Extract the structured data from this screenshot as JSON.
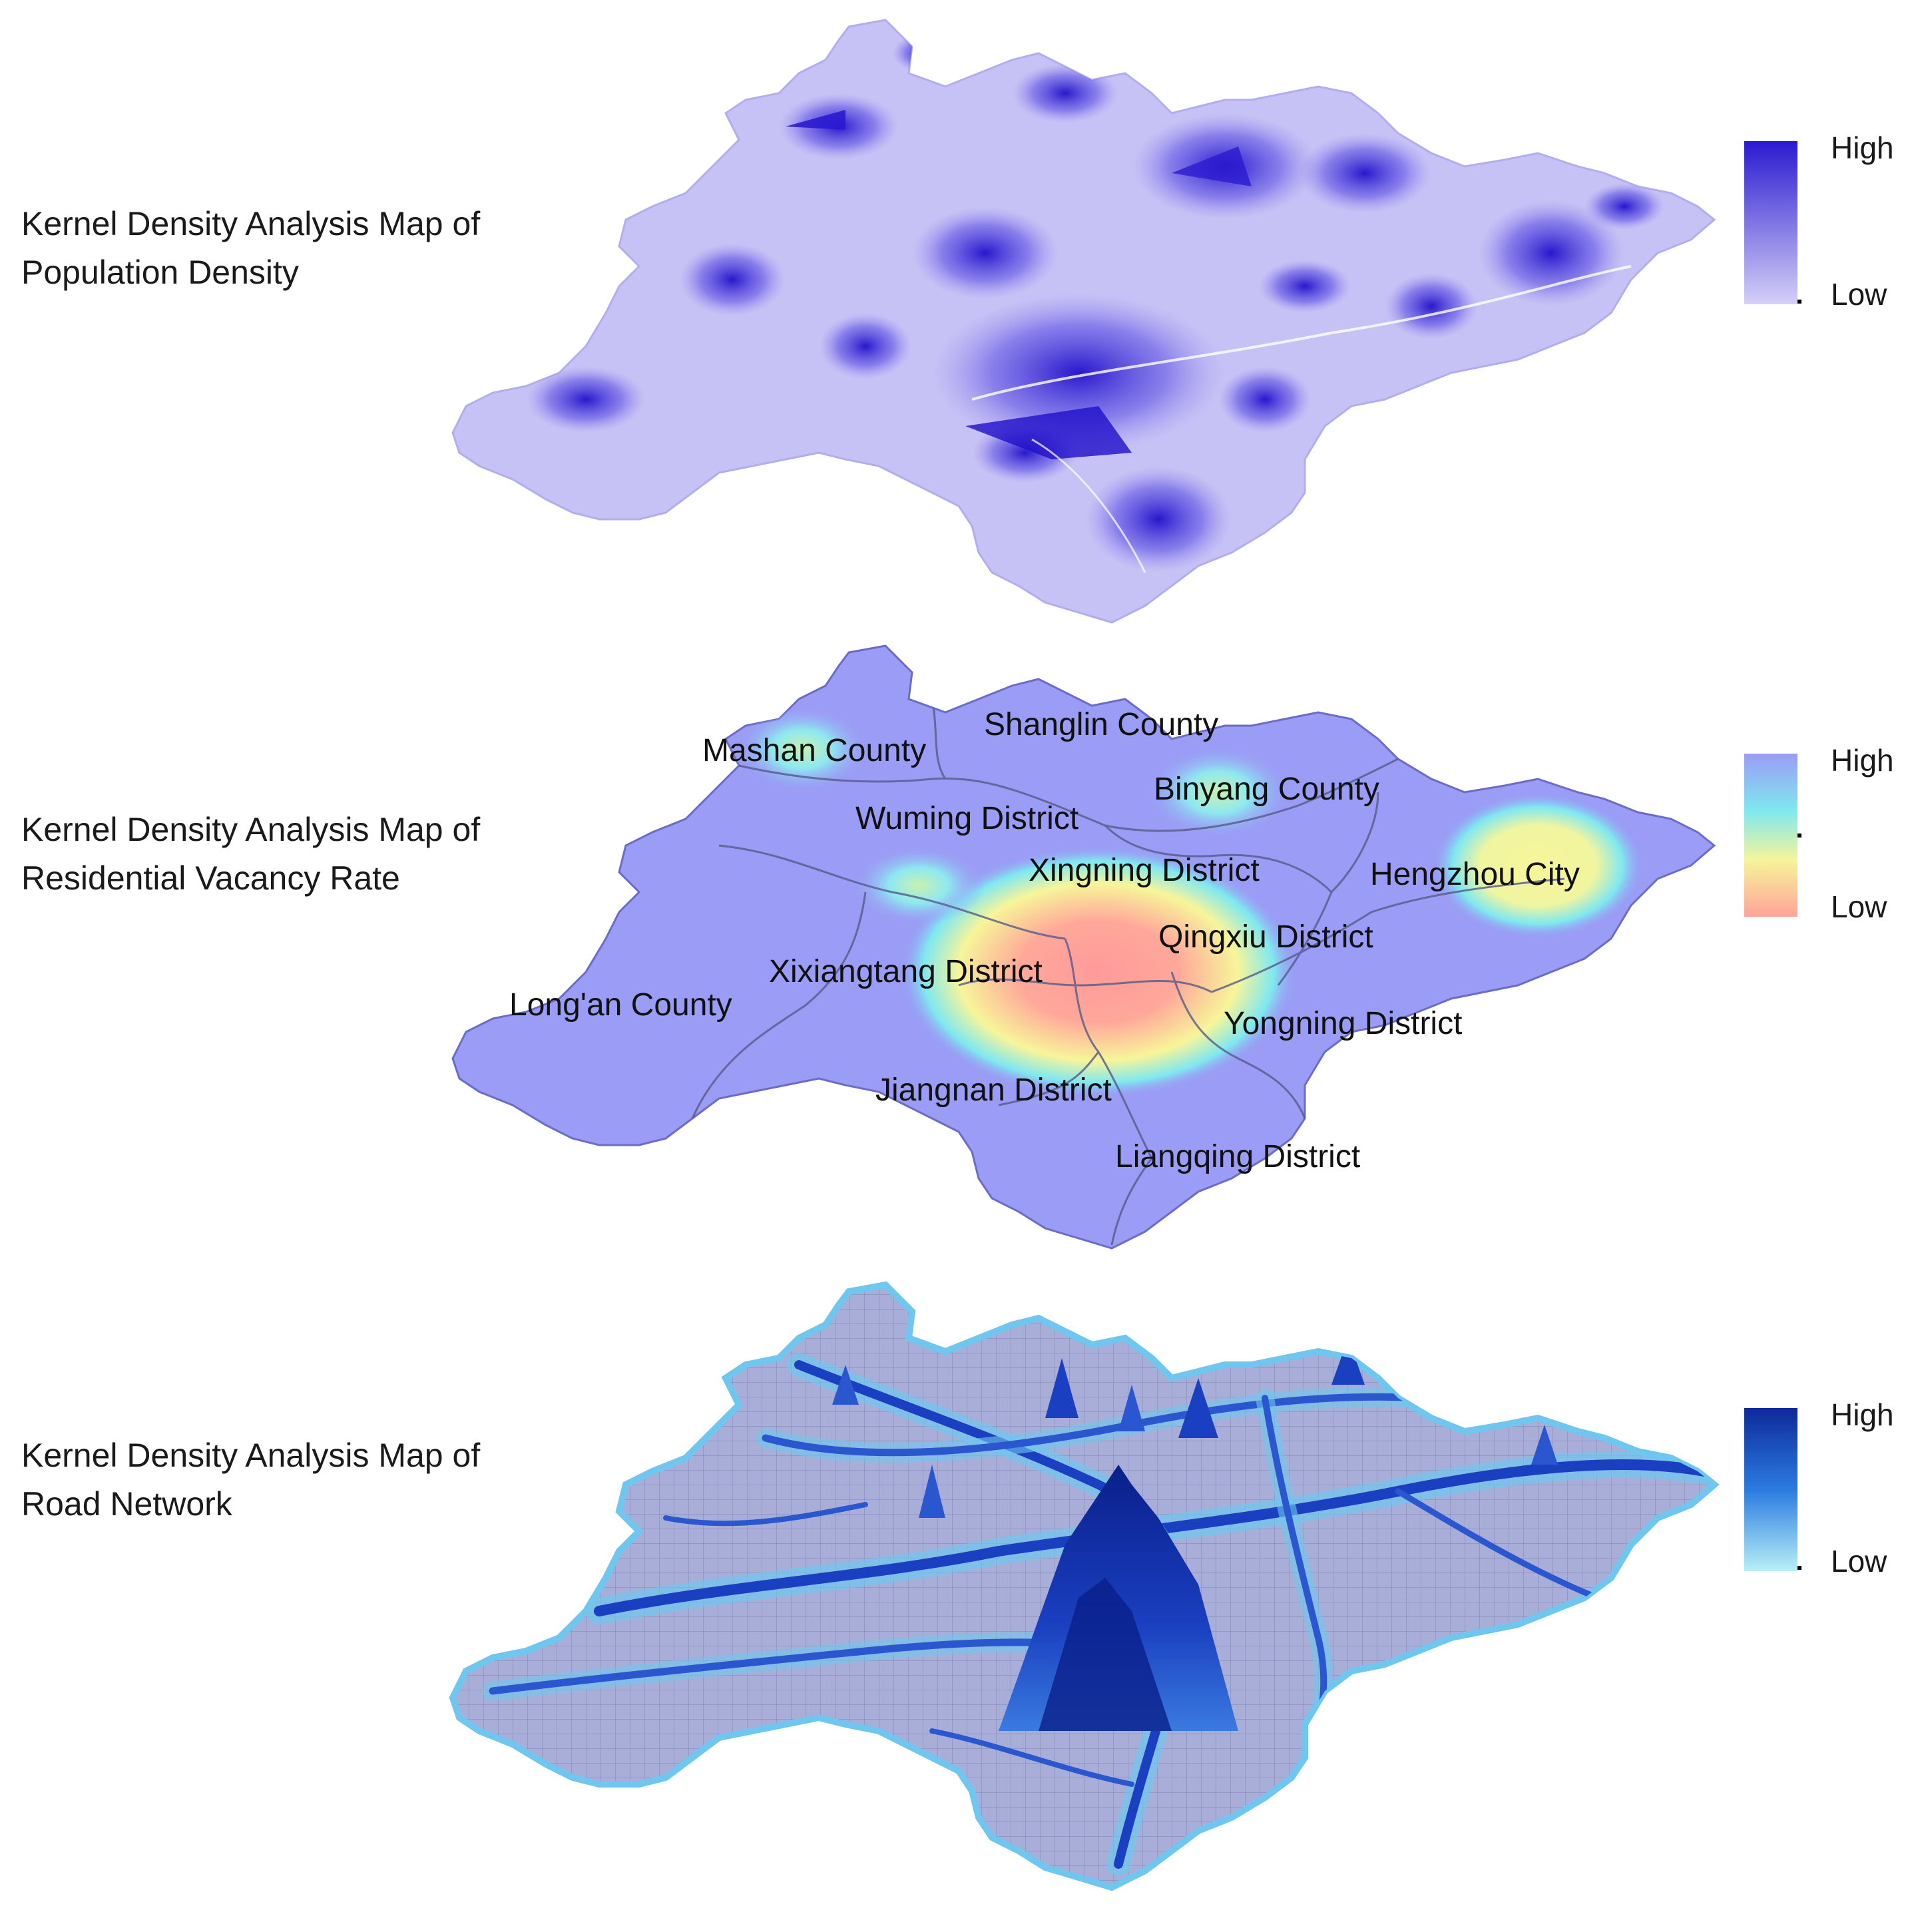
{
  "panels": [
    {
      "title_line1": "Kernel Density Analysis Map of",
      "title_line2": "Population Density",
      "legend": {
        "high": "High",
        "low": "Low",
        "colors": [
          "#2a1ad0",
          "#d4d0f7"
        ]
      }
    },
    {
      "title_line1": "Kernel Density Analysis Map of",
      "title_line2": "Residential Vacancy Rate",
      "legend": {
        "high": "High",
        "low": "Low",
        "colors": [
          "#9a9cf5",
          "#7fe8f0",
          "#f5f59a",
          "#ffa39a"
        ]
      },
      "districts": [
        "Mashan County",
        "Shanglin County",
        "Binyang County",
        "Wuming District",
        "Xingning District",
        "Hengzhou City",
        "Qingxiu District",
        "Xixiangtang District",
        "Long'an County",
        "Yongning District",
        "Jiangnan District",
        "Liangqing District"
      ]
    },
    {
      "title_line1": "Kernel Density Analysis Map of",
      "title_line2": "Road Network",
      "legend": {
        "high": "High",
        "low": "Low",
        "colors": [
          "#0e2a9a",
          "#2a7be0",
          "#b8f0f5"
        ]
      }
    }
  ]
}
